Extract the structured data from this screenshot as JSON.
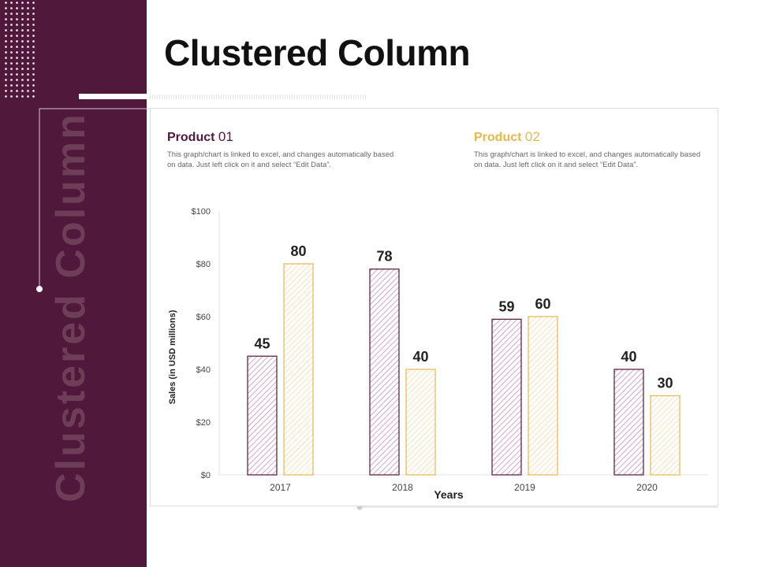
{
  "slide": {
    "title": "Clustered Column",
    "vertical_title": "Clustered Column"
  },
  "legend": [
    {
      "label": "Product",
      "number": "01",
      "color": "#50183a",
      "description": "This graph/chart is linked to excel, and changes automatically based on data. Just left click on it and select “Edit Data”."
    },
    {
      "label": "Product",
      "number": "02",
      "color": "#e3b84f",
      "description": "This graph/chart is linked to excel, and changes automatically based on data. Just left click on it and select “Edit Data”."
    }
  ],
  "colors": {
    "sidebar": "#50183a",
    "product1": "#50183a",
    "product2": "#e3b84f"
  },
  "chart_data": {
    "type": "bar",
    "title": "",
    "xlabel": "Years",
    "ylabel": "Sales (in USD millions)",
    "categories": [
      "2017",
      "2018",
      "2019",
      "2020"
    ],
    "series": [
      {
        "name": "Product 01",
        "values": [
          45,
          78,
          59,
          40
        ]
      },
      {
        "name": "Product 02",
        "values": [
          80,
          40,
          60,
          30
        ]
      }
    ],
    "ylim": [
      0,
      100
    ],
    "yticks": [
      "$0",
      "$20",
      "$40",
      "$60",
      "$80",
      "$100"
    ]
  }
}
